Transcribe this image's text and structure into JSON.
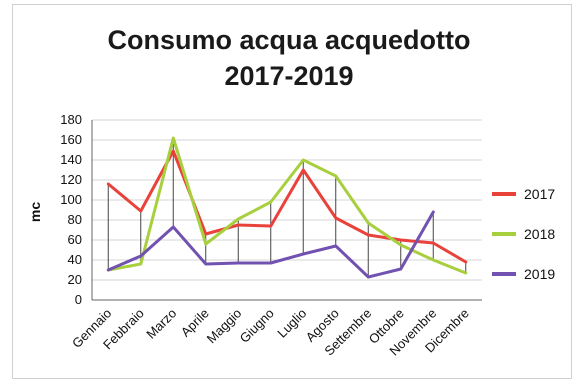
{
  "chart_data": {
    "type": "line",
    "title_lines": [
      "Consumo acqua acquedotto",
      "2017-2019"
    ],
    "ylabel": "mc",
    "xlabel": "",
    "categories": [
      "Gennaio",
      "Febbraio",
      "Marzo",
      "Aprile",
      "Maggio",
      "Giugno",
      "Luglio",
      "Agosto",
      "Settembre",
      "Ottobre",
      "Novembre",
      "Dicembre"
    ],
    "ylim": [
      0,
      180
    ],
    "yticks": [
      0,
      20,
      40,
      60,
      80,
      100,
      120,
      140,
      160,
      180
    ],
    "grid": true,
    "legend_position": "right",
    "series": [
      {
        "name": "2017",
        "color": "#e8423b",
        "values": [
          116,
          89,
          149,
          66,
          75,
          74,
          130,
          82,
          65,
          60,
          57,
          38
        ]
      },
      {
        "name": "2018",
        "color": "#a8cf3e",
        "values": [
          30,
          36,
          162,
          56,
          81,
          98,
          140,
          124,
          77,
          55,
          40,
          27
        ]
      },
      {
        "name": "2019",
        "color": "#7152b0",
        "values": [
          30,
          44,
          73,
          36,
          37,
          37,
          46,
          54,
          23,
          31,
          88,
          null
        ]
      }
    ]
  }
}
